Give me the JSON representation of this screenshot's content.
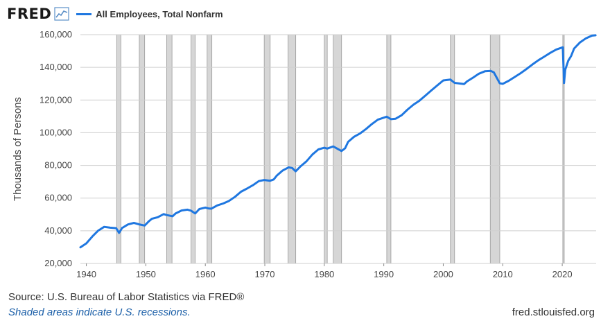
{
  "header": {
    "logo": "FRED",
    "logo_icon": "line-chart-icon",
    "legend_label": "All Employees, Total Nonfarm"
  },
  "footer": {
    "source": "Source: U.S. Bureau of Labor Statistics via FRED®",
    "note": "Shaded areas indicate U.S. recessions.",
    "url": "fred.stlouisfed.org"
  },
  "colors": {
    "series": "#1f77e0",
    "recession": "#d6d6d6",
    "grid": "#cfcfcf"
  },
  "chart_data": {
    "type": "line",
    "title": "",
    "xlabel": "",
    "ylabel": "Thousands of Persons",
    "xlim": [
      1939.0,
      2025.7
    ],
    "ylim": [
      20000,
      160000
    ],
    "x_ticks": [
      1940,
      1950,
      1960,
      1970,
      1980,
      1990,
      2000,
      2010,
      2020
    ],
    "y_ticks": [
      20000,
      40000,
      60000,
      80000,
      100000,
      120000,
      140000,
      160000
    ],
    "y_tick_labels": [
      "20,000",
      "40,000",
      "60,000",
      "80,000",
      "100,000",
      "120,000",
      "140,000",
      "160,000"
    ],
    "grid": "horizontal",
    "legend_position": "top-left",
    "recessions": [
      [
        1945.1,
        1945.8
      ],
      [
        1948.9,
        1949.8
      ],
      [
        1953.5,
        1954.4
      ],
      [
        1957.6,
        1958.3
      ],
      [
        1960.3,
        1961.1
      ],
      [
        1969.9,
        1970.9
      ],
      [
        1973.9,
        1975.2
      ],
      [
        1980.0,
        1980.5
      ],
      [
        1981.5,
        1982.9
      ],
      [
        1990.5,
        1991.2
      ],
      [
        2001.2,
        2001.9
      ],
      [
        2007.9,
        2009.5
      ],
      [
        2020.1,
        2020.3
      ]
    ],
    "series": [
      {
        "name": "All Employees, Total Nonfarm",
        "x": [
          1939.0,
          1940.0,
          1941.0,
          1942.0,
          1943.0,
          1944.0,
          1945.0,
          1945.5,
          1946.0,
          1947.0,
          1948.0,
          1949.0,
          1949.8,
          1950.5,
          1951.0,
          1952.0,
          1953.0,
          1953.5,
          1954.5,
          1955.0,
          1956.0,
          1957.0,
          1957.6,
          1958.3,
          1959.0,
          1960.0,
          1960.5,
          1961.0,
          1962.0,
          1963.0,
          1964.0,
          1965.0,
          1966.0,
          1967.0,
          1968.0,
          1969.0,
          1969.9,
          1970.9,
          1971.5,
          1972.0,
          1973.0,
          1974.0,
          1974.6,
          1975.2,
          1976.0,
          1977.0,
          1978.0,
          1979.0,
          1980.0,
          1980.5,
          1981.5,
          1982.9,
          1983.5,
          1984.0,
          1985.0,
          1986.0,
          1987.0,
          1988.0,
          1989.0,
          1990.5,
          1991.2,
          1992.0,
          1993.0,
          1994.0,
          1995.0,
          1996.0,
          1997.0,
          1998.0,
          1999.0,
          2000.0,
          2001.2,
          2001.9,
          2003.5,
          2004.0,
          2005.0,
          2006.0,
          2007.0,
          2008.0,
          2008.5,
          2009.5,
          2010.0,
          2011.0,
          2012.0,
          2013.0,
          2014.0,
          2015.0,
          2016.0,
          2017.0,
          2018.0,
          2019.0,
          2020.1,
          2020.3,
          2020.5,
          2021.0,
          2021.5,
          2022.0,
          2023.0,
          2024.0,
          2025.0,
          2025.6
        ],
        "values": [
          29900,
          32300,
          36500,
          40100,
          42400,
          41900,
          41600,
          38700,
          41700,
          43900,
          44800,
          43800,
          43200,
          45800,
          47300,
          48300,
          50200,
          49600,
          48900,
          50600,
          52400,
          52900,
          52300,
          50600,
          53300,
          54200,
          53700,
          53500,
          55500,
          56700,
          58300,
          60800,
          63900,
          65800,
          67900,
          70400,
          71100,
          70600,
          71400,
          73700,
          76900,
          78800,
          78400,
          76400,
          79400,
          82500,
          86700,
          89800,
          90800,
          90300,
          91600,
          88800,
          90500,
          94400,
          97500,
          99500,
          102200,
          105300,
          108000,
          109800,
          108300,
          108600,
          110700,
          114200,
          117200,
          119600,
          122700,
          125900,
          129000,
          132000,
          132500,
          130500,
          129800,
          131400,
          133700,
          136100,
          137600,
          137800,
          136900,
          130200,
          129900,
          131800,
          134100,
          136400,
          139000,
          141800,
          144400,
          146600,
          148900,
          150900,
          152300,
          130400,
          138500,
          144000,
          147000,
          151500,
          155300,
          157800,
          159400,
          159600
        ]
      }
    ]
  }
}
